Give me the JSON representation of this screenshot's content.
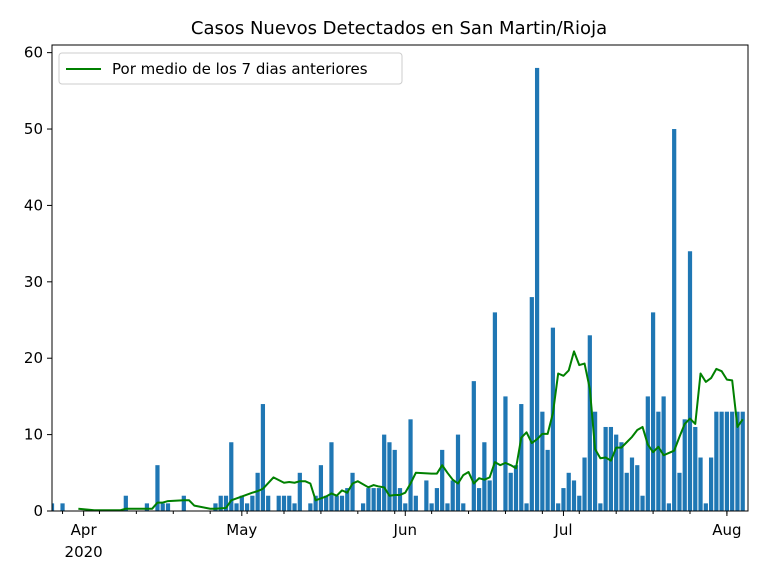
{
  "chart_data": {
    "type": "bar",
    "title": "Casos Nuevos Detectados en San Martin/Rioja",
    "xlabel": "",
    "ylabel": "",
    "ylim": [
      0,
      61
    ],
    "y_ticks": [
      0,
      10,
      20,
      30,
      40,
      50,
      60
    ],
    "x_start": "2020-03-26",
    "x_end": "2020-08-05",
    "x_ticks": [
      {
        "date": "2020-04-01",
        "label": "Apr",
        "sublabel": "2020"
      },
      {
        "date": "2020-05-01",
        "label": "May",
        "sublabel": ""
      },
      {
        "date": "2020-06-01",
        "label": "Jun",
        "sublabel": ""
      },
      {
        "date": "2020-07-01",
        "label": "Jul",
        "sublabel": ""
      },
      {
        "date": "2020-08-01",
        "label": "Aug",
        "sublabel": ""
      }
    ],
    "legend": {
      "placement": "top-left",
      "entries": [
        {
          "label": "Por medio de los 7 dias anteriores",
          "color": "#008000"
        }
      ]
    },
    "bar_color": "#1f77b4",
    "line_color": "#008000",
    "series": [
      {
        "name": "Casos",
        "kind": "bar",
        "dates": [
          "2020-03-26",
          "2020-03-28",
          "2020-04-09",
          "2020-04-13",
          "2020-04-15",
          "2020-04-16",
          "2020-04-17",
          "2020-04-20",
          "2020-04-26",
          "2020-04-27",
          "2020-04-28",
          "2020-04-29",
          "2020-04-30",
          "2020-05-01",
          "2020-05-02",
          "2020-05-03",
          "2020-05-04",
          "2020-05-05",
          "2020-05-06",
          "2020-05-08",
          "2020-05-09",
          "2020-05-10",
          "2020-05-11",
          "2020-05-12",
          "2020-05-14",
          "2020-05-15",
          "2020-05-16",
          "2020-05-17",
          "2020-05-18",
          "2020-05-19",
          "2020-05-20",
          "2020-05-21",
          "2020-05-22",
          "2020-05-24",
          "2020-05-25",
          "2020-05-26",
          "2020-05-27",
          "2020-05-28",
          "2020-05-29",
          "2020-05-30",
          "2020-05-31",
          "2020-06-01",
          "2020-06-02",
          "2020-06-03",
          "2020-06-05",
          "2020-06-06",
          "2020-06-07",
          "2020-06-08",
          "2020-06-09",
          "2020-06-10",
          "2020-06-11",
          "2020-06-12",
          "2020-06-14",
          "2020-06-15",
          "2020-06-16",
          "2020-06-17",
          "2020-06-18",
          "2020-06-20",
          "2020-06-21",
          "2020-06-22",
          "2020-06-23",
          "2020-06-24",
          "2020-06-25",
          "2020-06-26",
          "2020-06-27",
          "2020-06-28",
          "2020-06-29",
          "2020-06-30",
          "2020-07-01",
          "2020-07-02",
          "2020-07-03",
          "2020-07-04",
          "2020-07-05",
          "2020-07-06",
          "2020-07-07",
          "2020-07-08",
          "2020-07-09",
          "2020-07-10",
          "2020-07-11",
          "2020-07-12",
          "2020-07-13",
          "2020-07-14",
          "2020-07-15",
          "2020-07-16",
          "2020-07-17",
          "2020-07-18",
          "2020-07-19",
          "2020-07-20",
          "2020-07-21",
          "2020-07-22",
          "2020-07-23",
          "2020-07-24",
          "2020-07-25",
          "2020-07-26",
          "2020-07-27",
          "2020-07-28",
          "2020-07-29",
          "2020-07-30",
          "2020-07-31",
          "2020-08-01",
          "2020-08-02",
          "2020-08-03",
          "2020-08-04"
        ],
        "values": [
          1,
          1,
          2,
          1,
          6,
          1,
          1,
          2,
          1,
          2,
          2,
          9,
          1,
          2,
          1,
          2,
          5,
          14,
          2,
          2,
          2,
          2,
          1,
          5,
          1,
          2,
          6,
          2,
          9,
          2,
          2,
          3,
          5,
          1,
          3,
          3,
          3,
          10,
          9,
          8,
          3,
          1,
          12,
          2,
          4,
          1,
          3,
          8,
          1,
          4,
          10,
          1,
          17,
          3,
          9,
          4,
          26,
          15,
          5,
          6,
          14,
          1,
          28,
          58,
          13,
          8,
          24,
          1,
          3,
          5,
          4,
          2,
          7,
          23,
          13,
          1,
          11,
          11,
          10,
          9,
          5,
          7,
          6,
          2,
          15,
          26,
          13,
          15,
          1,
          50,
          5,
          12,
          34,
          11,
          7,
          1,
          7,
          13,
          13,
          13,
          13,
          13,
          13
        ]
      },
      {
        "name": "Por medio de los 7 dias anteriores",
        "kind": "line",
        "dates": [
          "2020-03-31",
          "2020-04-03",
          "2020-04-08",
          "2020-04-09",
          "2020-04-14",
          "2020-04-15",
          "2020-04-16",
          "2020-04-17",
          "2020-04-20",
          "2020-04-21",
          "2020-04-22",
          "2020-04-25",
          "2020-04-26",
          "2020-04-28",
          "2020-04-29",
          "2020-05-03",
          "2020-05-04",
          "2020-05-05",
          "2020-05-07",
          "2020-05-09",
          "2020-05-10",
          "2020-05-11",
          "2020-05-12",
          "2020-05-13",
          "2020-05-14",
          "2020-05-15",
          "2020-05-17",
          "2020-05-18",
          "2020-05-19",
          "2020-05-20",
          "2020-05-21",
          "2020-05-22",
          "2020-05-23",
          "2020-05-25",
          "2020-05-26",
          "2020-05-27",
          "2020-05-28",
          "2020-05-29",
          "2020-05-30",
          "2020-05-31",
          "2020-06-01",
          "2020-06-02",
          "2020-06-03",
          "2020-06-06",
          "2020-06-07",
          "2020-06-08",
          "2020-06-09",
          "2020-06-10",
          "2020-06-11",
          "2020-06-12",
          "2020-06-13",
          "2020-06-14",
          "2020-06-15",
          "2020-06-16",
          "2020-06-17",
          "2020-06-18",
          "2020-06-19",
          "2020-06-20",
          "2020-06-21",
          "2020-06-22",
          "2020-06-23",
          "2020-06-24",
          "2020-06-25",
          "2020-06-26",
          "2020-06-27",
          "2020-06-28",
          "2020-06-29",
          "2020-06-30",
          "2020-07-01",
          "2020-07-02",
          "2020-07-03",
          "2020-07-04",
          "2020-07-05",
          "2020-07-06",
          "2020-07-07",
          "2020-07-08",
          "2020-07-09",
          "2020-07-10",
          "2020-07-11",
          "2020-07-12",
          "2020-07-13",
          "2020-07-14",
          "2020-07-15",
          "2020-07-16",
          "2020-07-17",
          "2020-07-18",
          "2020-07-19",
          "2020-07-20",
          "2020-07-21",
          "2020-07-22",
          "2020-07-23",
          "2020-07-24",
          "2020-07-25",
          "2020-07-26",
          "2020-07-27",
          "2020-07-28",
          "2020-07-29",
          "2020-07-30",
          "2020-07-31",
          "2020-08-01",
          "2020-08-02",
          "2020-08-03",
          "2020-08-04"
        ],
        "values": [
          0.3,
          0.1,
          0.1,
          0.3,
          0.3,
          1.1,
          1.1,
          1.3,
          1.4,
          1.4,
          0.7,
          0.3,
          0.3,
          0.4,
          1.4,
          2.4,
          2.6,
          2.9,
          4.4,
          3.7,
          3.8,
          3.7,
          3.9,
          3.9,
          3.6,
          1.4,
          1.9,
          2.3,
          2.0,
          2.7,
          2.4,
          3.6,
          3.9,
          3.1,
          3.4,
          3.2,
          3.1,
          2.0,
          2.1,
          2.1,
          2.4,
          3.6,
          5.0,
          4.9,
          4.9,
          6.0,
          5.0,
          4.1,
          3.6,
          4.7,
          5.1,
          3.6,
          4.3,
          4.1,
          4.4,
          6.4,
          6.0,
          6.3,
          6.0,
          5.6,
          9.6,
          10.3,
          8.9,
          9.4,
          10.1,
          10.1,
          12.8,
          18.0,
          17.7,
          18.4,
          20.9,
          19.1,
          19.3,
          16.0,
          8.1,
          6.9,
          7.0,
          6.6,
          8.3,
          8.3,
          9.0,
          9.7,
          10.6,
          11.0,
          8.7,
          7.7,
          8.4,
          7.3,
          7.6,
          7.9,
          9.7,
          11.4,
          12.1,
          11.4,
          18.0,
          16.9,
          17.4,
          18.6,
          18.3,
          17.2,
          17.1,
          11.0,
          12.0
        ]
      }
    ]
  }
}
